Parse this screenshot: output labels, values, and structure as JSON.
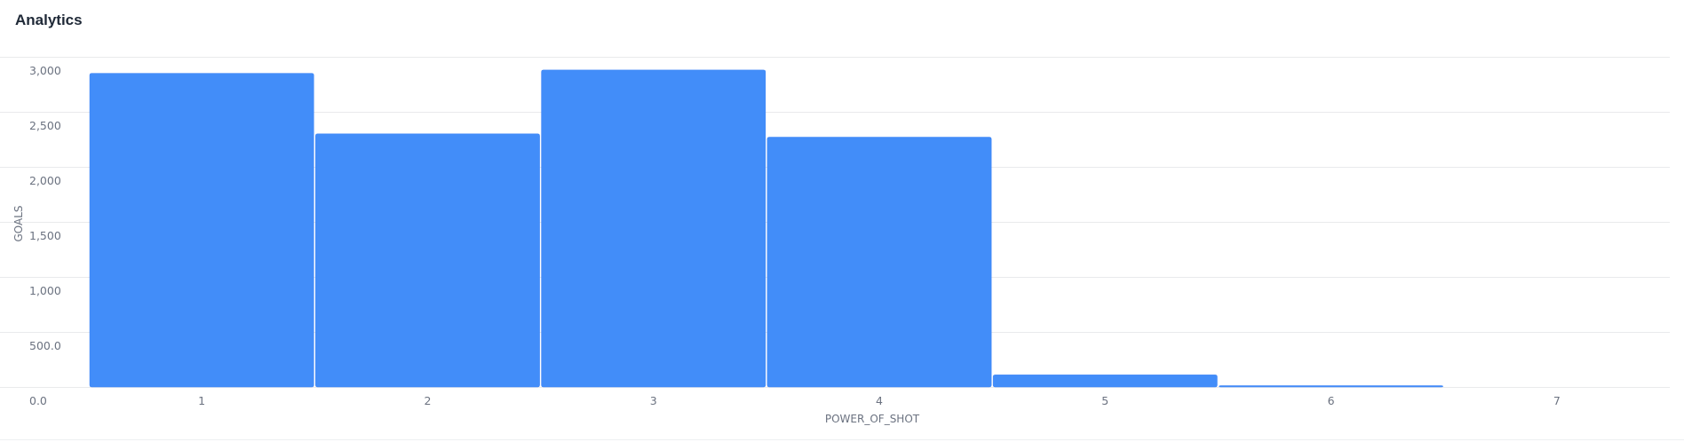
{
  "header": {
    "title": "Analytics"
  },
  "chart_data": {
    "type": "bar",
    "title": "",
    "xlabel": "POWER_OF_SHOT",
    "ylabel": "GOALS",
    "categories": [
      "1",
      "2",
      "3",
      "4",
      "5",
      "6",
      "7"
    ],
    "values": [
      2850,
      2300,
      2880,
      2270,
      110,
      10,
      0
    ],
    "yticks": [
      "0.0",
      "500.0",
      "1,000",
      "1,500",
      "2,000",
      "2,500",
      "3,000"
    ],
    "ylim": [
      0,
      3000
    ],
    "grid": true,
    "legend": false,
    "colors": {
      "bar": "#428df9",
      "bar_edge": "#3b82f6"
    }
  }
}
